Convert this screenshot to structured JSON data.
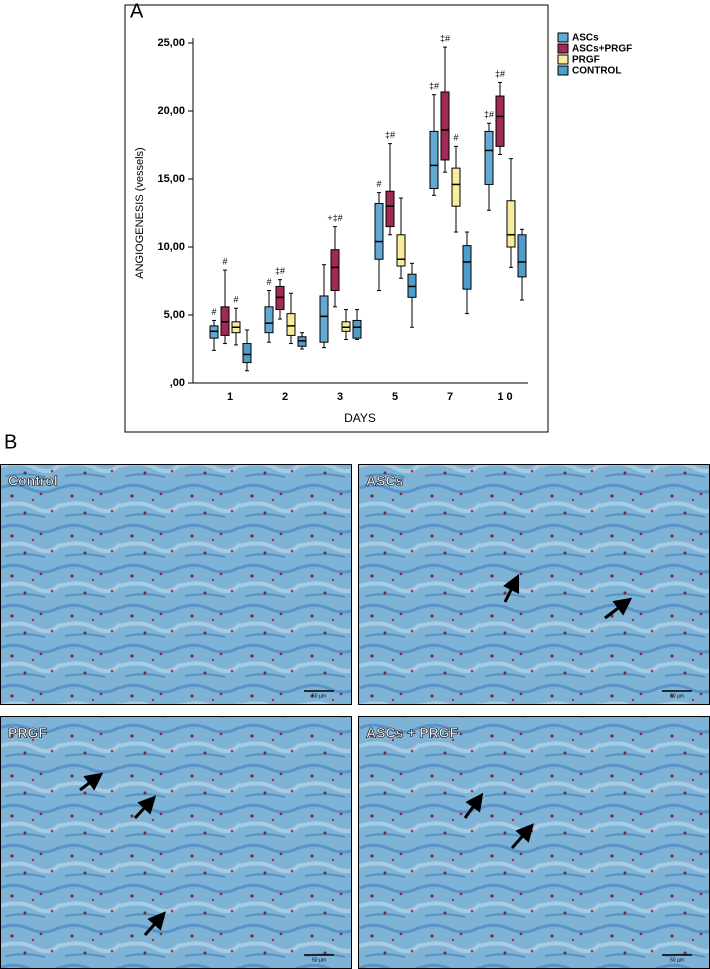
{
  "chart_data": {
    "type": "box",
    "panel_label": "A",
    "x_label": "DAYS",
    "y_label": "ANGIOGENESIS (vessels)",
    "categories": [
      "1",
      "2",
      "3",
      "5",
      "7",
      "1 0"
    ],
    "ylim": [
      0,
      25
    ],
    "yticks": [
      {
        "value": 0,
        "label": ",00"
      },
      {
        "value": 5,
        "label": "5,00"
      },
      {
        "value": 10,
        "label": "10,00"
      },
      {
        "value": 15,
        "label": "15,00"
      },
      {
        "value": 20,
        "label": "20,00"
      },
      {
        "value": 25,
        "label": "25,00"
      }
    ],
    "series": [
      {
        "name": "ASCs",
        "color": "#62a9d3",
        "boxes": [
          {
            "min": 2.4,
            "q1": 3.3,
            "median": 3.8,
            "q3": 4.2,
            "max": 4.6
          },
          {
            "min": 3.0,
            "q1": 3.7,
            "median": 4.4,
            "q3": 5.6,
            "max": 6.8
          },
          {
            "min": 2.6,
            "q1": 3.0,
            "median": 4.9,
            "q3": 6.4,
            "max": 8.7
          },
          {
            "min": 6.8,
            "q1": 9.1,
            "median": 10.4,
            "q3": 13.2,
            "max": 14.0
          },
          {
            "min": 13.8,
            "q1": 14.3,
            "median": 16.0,
            "q3": 18.5,
            "max": 21.2
          },
          {
            "min": 12.7,
            "q1": 14.6,
            "median": 17.1,
            "q3": 18.5,
            "max": 19.1
          }
        ],
        "annotations": [
          "#",
          "#",
          null,
          "#",
          "‡#",
          "‡#"
        ]
      },
      {
        "name": "ASCs+PRGF",
        "color": "#a02a55",
        "boxes": [
          {
            "min": 2.9,
            "q1": 3.5,
            "median": 4.5,
            "q3": 5.6,
            "max": 8.3
          },
          {
            "min": 4.7,
            "q1": 5.4,
            "median": 6.3,
            "q3": 7.1,
            "max": 7.6
          },
          {
            "min": 5.6,
            "q1": 6.8,
            "median": 8.5,
            "q3": 9.8,
            "max": 11.5
          },
          {
            "min": 10.9,
            "q1": 11.5,
            "median": 13.0,
            "q3": 14.1,
            "max": 17.6
          },
          {
            "min": 15.5,
            "q1": 16.4,
            "median": 18.6,
            "q3": 21.4,
            "max": 24.7
          },
          {
            "min": 16.8,
            "q1": 17.4,
            "median": 19.6,
            "q3": 21.1,
            "max": 22.1
          }
        ],
        "annotations": [
          "#",
          "‡#",
          "+‡#",
          "‡#",
          "‡#",
          "‡#"
        ]
      },
      {
        "name": "PRGF",
        "color": "#f6ec9c",
        "boxes": [
          {
            "min": 2.8,
            "q1": 3.7,
            "median": 4.1,
            "q3": 4.5,
            "max": 5.5
          },
          {
            "min": 2.9,
            "q1": 3.5,
            "median": 4.2,
            "q3": 5.1,
            "max": 6.6
          },
          {
            "min": 3.2,
            "q1": 3.8,
            "median": 4.1,
            "q3": 4.5,
            "max": 5.4
          },
          {
            "min": 7.7,
            "q1": 8.6,
            "median": 9.1,
            "q3": 10.9,
            "max": 13.6
          },
          {
            "min": 11.1,
            "q1": 13.0,
            "median": 14.6,
            "q3": 15.8,
            "max": 17.4
          },
          {
            "min": 8.5,
            "q1": 10.0,
            "median": 10.9,
            "q3": 13.4,
            "max": 16.5
          }
        ],
        "annotations": [
          "#",
          null,
          null,
          null,
          "#",
          null
        ]
      },
      {
        "name": "CONTROL",
        "color": "#4f9dcb",
        "boxes": [
          {
            "min": 0.9,
            "q1": 1.5,
            "median": 2.1,
            "q3": 2.9,
            "max": 3.9
          },
          {
            "min": 2.5,
            "q1": 2.7,
            "median": 3.1,
            "q3": 3.4,
            "max": 3.7
          },
          {
            "min": 3.2,
            "q1": 3.3,
            "median": 4.1,
            "q3": 4.6,
            "max": 5.4
          },
          {
            "min": 4.1,
            "q1": 6.3,
            "median": 7.1,
            "q3": 8.0,
            "max": 8.8
          },
          {
            "min": 5.1,
            "q1": 6.9,
            "median": 8.9,
            "q3": 10.1,
            "max": 11.1
          },
          {
            "min": 6.1,
            "q1": 7.8,
            "median": 8.9,
            "q3": 10.9,
            "max": 11.3
          }
        ],
        "annotations": [
          null,
          null,
          null,
          null,
          null,
          null
        ]
      }
    ]
  },
  "figure_b": {
    "label": "B",
    "panels": [
      {
        "label": "Control",
        "scale": "50 µm"
      },
      {
        "label": "ASCs",
        "scale": "50 µm"
      },
      {
        "label": "PRGF",
        "scale": "50 µm"
      },
      {
        "label": "ASCs + PRGF",
        "scale": "50 µm"
      }
    ]
  }
}
